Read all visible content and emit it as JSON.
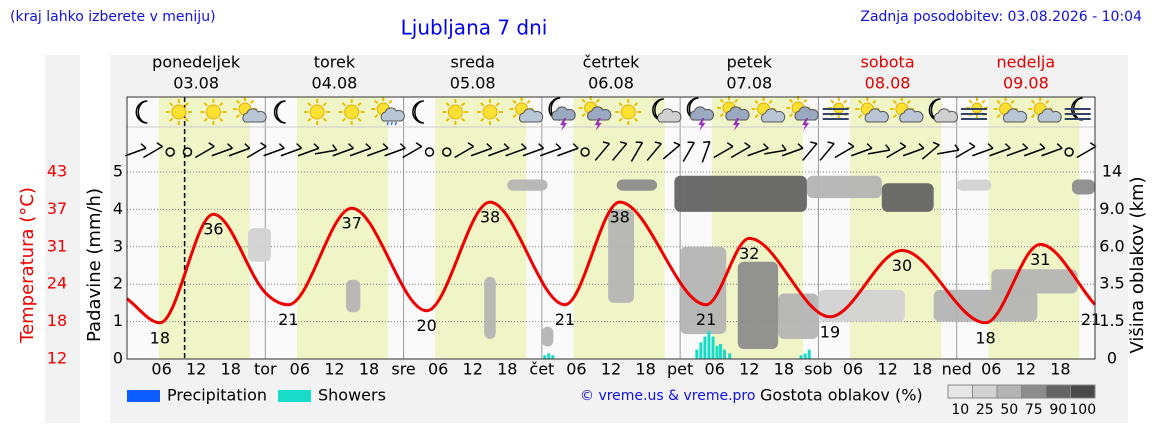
{
  "chart_data": {
    "type": "line",
    "title": "Ljubljana 7 dni",
    "subtitle": "(kraj lahko izberete v meniju)",
    "updated": "Zadnja posodobitev: 03.08.2026 - 10:04",
    "credit": "© vreme.us & vreme.pro",
    "xlim": [
      0,
      168
    ],
    "xticks": [
      {
        "value": 6,
        "label": "06"
      },
      12,
      18,
      {
        "value": 24,
        "label": "tor"
      },
      {
        "value": 30,
        "label": "06"
      },
      {
        "value": 36,
        "label": "12"
      },
      {
        "value": 42,
        "label": "18"
      },
      {
        "value": 48,
        "label": "sre"
      },
      {
        "value": 54,
        "label": "06"
      },
      {
        "value": 60,
        "label": "12"
      },
      {
        "value": 66,
        "label": "18"
      },
      {
        "value": 72,
        "label": "čet"
      },
      {
        "value": 78,
        "label": "06"
      },
      {
        "value": 84,
        "label": "12"
      },
      {
        "value": 90,
        "label": "18"
      },
      {
        "value": 96,
        "label": "pet"
      },
      {
        "value": 102,
        "label": "06"
      },
      {
        "value": 108,
        "label": "12"
      },
      {
        "value": 114,
        "label": "18"
      },
      {
        "value": 120,
        "label": "sob"
      },
      {
        "value": 126,
        "label": "06"
      },
      {
        "value": 132,
        "label": "12"
      },
      {
        "value": 138,
        "label": "18"
      },
      {
        "value": 144,
        "label": "ned"
      },
      {
        "value": 150,
        "label": "06"
      },
      {
        "value": 156,
        "label": "12"
      },
      {
        "value": 162,
        "label": "18"
      }
    ],
    "days": [
      {
        "name": "ponedeljek",
        "date": "03.08",
        "color": "#000000"
      },
      {
        "name": "torek",
        "date": "04.08",
        "color": "#000000"
      },
      {
        "name": "sreda",
        "date": "05.08",
        "color": "#000000"
      },
      {
        "name": "četrtek",
        "date": "06.08",
        "color": "#000000"
      },
      {
        "name": "petek",
        "date": "07.08",
        "color": "#000000"
      },
      {
        "name": "sobota",
        "date": "08.08",
        "color": "#e00000"
      },
      {
        "name": "nedelja",
        "date": "09.08",
        "color": "#e00000"
      }
    ],
    "daylight": [
      [
        5.5,
        21.3
      ],
      [
        29.5,
        45.3
      ],
      [
        53.5,
        69.3
      ],
      [
        77.5,
        93.3
      ],
      [
        101.5,
        117.3
      ],
      [
        125.5,
        141.3
      ],
      [
        149.5,
        165.3
      ]
    ],
    "now": 10,
    "icons": [
      "moon",
      "sun",
      "sun",
      "suncloud",
      "moon",
      "sun",
      "sun",
      "suncloudrain",
      "moon",
      "sun",
      "sun",
      "suncloud",
      "moonstorm",
      "sunstorm",
      "sun",
      "mooncloud",
      "moonstorm",
      "sunstorm",
      "suncloud",
      "sunstorm",
      "fog",
      "suncloud",
      "suncloud",
      "mooncloud",
      "fog",
      "suncloud",
      "suncloud",
      "moonfog"
    ],
    "wind": [
      290,
      300,
      null,
      null,
      300,
      290,
      290,
      300,
      290,
      290,
      290,
      280,
      290,
      290,
      290,
      290,
      300,
      null,
      null,
      300,
      290,
      290,
      290,
      290,
      290,
      290,
      null,
      320,
      320,
      330,
      320,
      310,
      330,
      340,
      300,
      300,
      290,
      280,
      290,
      320,
      320,
      300,
      290,
      280,
      300,
      290,
      310,
      280,
      300,
      290,
      290,
      290,
      290,
      290,
      null,
      300
    ],
    "ylabel": "Padavine (mm/h)",
    "ylim": [
      0,
      5
    ],
    "yticks": [
      0,
      1,
      2,
      3,
      4,
      5
    ],
    "grid": true,
    "temperature": {
      "label": "Temperatura (°C)",
      "color": "#ee0000",
      "lim": [
        12,
        43
      ],
      "ticks": [
        12,
        {
          "value": 18.2,
          "label": "18"
        },
        {
          "value": 24.4,
          "label": "24"
        },
        {
          "value": 30.6,
          "label": "31"
        },
        {
          "value": 36.8,
          "label": "37"
        },
        43
      ],
      "x": [
        0,
        5.7,
        15,
        24,
        28,
        39,
        52,
        63,
        76,
        85.5,
        100.5,
        108,
        122,
        134.5,
        149,
        158.5,
        168
      ],
      "values": [
        22,
        18,
        36,
        23,
        21,
        37,
        20,
        38,
        21,
        38,
        21,
        32,
        19,
        30,
        18,
        31,
        21
      ],
      "extremes": {
        "x": [
          5.7,
          15,
          28,
          39,
          52,
          63,
          76,
          85.5,
          100.5,
          108,
          122,
          134.5,
          149,
          158.5,
          168
        ],
        "values": [
          18,
          36,
          21,
          37,
          20,
          38,
          21,
          38,
          21,
          32,
          19,
          30,
          18,
          31,
          21
        ]
      }
    },
    "y2label": "Višina oblakov (km)",
    "y2lim": [
      0,
      14
    ],
    "y2ticks": [
      0,
      1.5,
      3.5,
      {
        "value": 6,
        "label": "6.0"
      },
      {
        "value": 9,
        "label": "9.0"
      },
      14
    ],
    "series": [
      {
        "name": "Precipitation",
        "color": "#0a5cff",
        "x": [],
        "values": []
      },
      {
        "name": "Showers",
        "color": "#19dcc8",
        "x": [
          72.5,
          73.2,
          73.9,
          98.9,
          99.6,
          100.3,
          101,
          101.7,
          102.4,
          103,
          103.7,
          104.6,
          117,
          117.7,
          118.4
        ],
        "values": [
          0.1,
          0.15,
          0.1,
          0.25,
          0.45,
          0.6,
          0.75,
          0.6,
          0.35,
          0.4,
          0.25,
          0.15,
          0.1,
          0.15,
          0.25
        ]
      }
    ],
    "clouds": [
      {
        "x0": 21,
        "x1": 25,
        "h0": 5,
        "h1": 7.5,
        "density": 25
      },
      {
        "x0": 144,
        "x1": 150,
        "h0": 11.5,
        "h1": 13,
        "density": 25
      },
      {
        "x0": 120,
        "x1": 135,
        "h0": 1.5,
        "h1": 3.2,
        "density": 25
      },
      {
        "x0": 66,
        "x1": 73,
        "h0": 11.5,
        "h1": 13,
        "density": 50
      },
      {
        "x0": 118,
        "x1": 131,
        "h0": 10.5,
        "h1": 13.5,
        "density": 50
      },
      {
        "x0": 38,
        "x1": 40.5,
        "h0": 2,
        "h1": 3.8,
        "density": 50
      },
      {
        "x0": 62,
        "x1": 64,
        "h0": 0.8,
        "h1": 4,
        "density": 50
      },
      {
        "x0": 83.5,
        "x1": 88,
        "h0": 2.5,
        "h1": 9,
        "density": 50
      },
      {
        "x0": 96,
        "x1": 104,
        "h0": 1,
        "h1": 6,
        "density": 50
      },
      {
        "x0": 113,
        "x1": 120,
        "h0": 0.8,
        "h1": 3,
        "density": 50
      },
      {
        "x0": 140,
        "x1": 158,
        "h0": 1.5,
        "h1": 3.2,
        "density": 50
      },
      {
        "x0": 150,
        "x1": 165,
        "h0": 3,
        "h1": 4.5,
        "density": 50
      },
      {
        "x0": 72,
        "x1": 74,
        "h0": 0.5,
        "h1": 1.3,
        "density": 50
      },
      {
        "x0": 106,
        "x1": 113,
        "h0": 0.4,
        "h1": 5,
        "density": 75
      },
      {
        "x0": 85,
        "x1": 92,
        "h0": 11.5,
        "h1": 13,
        "density": 75
      },
      {
        "x0": 164,
        "x1": 168,
        "h0": 11,
        "h1": 13,
        "density": 75
      },
      {
        "x0": 95,
        "x1": 118,
        "h0": 8.8,
        "h1": 13.5,
        "density": 90
      },
      {
        "x0": 131,
        "x1": 140,
        "h0": 8.8,
        "h1": 12.5,
        "density": 90
      }
    ],
    "cloud_density": {
      "label": "Gostota oblakov (%)",
      "levels": [
        10,
        25,
        50,
        75,
        90,
        100
      ],
      "colors": [
        "#e6e6e6",
        "#d2d2d2",
        "#b4b4b4",
        "#8c8c8c",
        "#646464",
        "#4a4a4a"
      ]
    }
  }
}
